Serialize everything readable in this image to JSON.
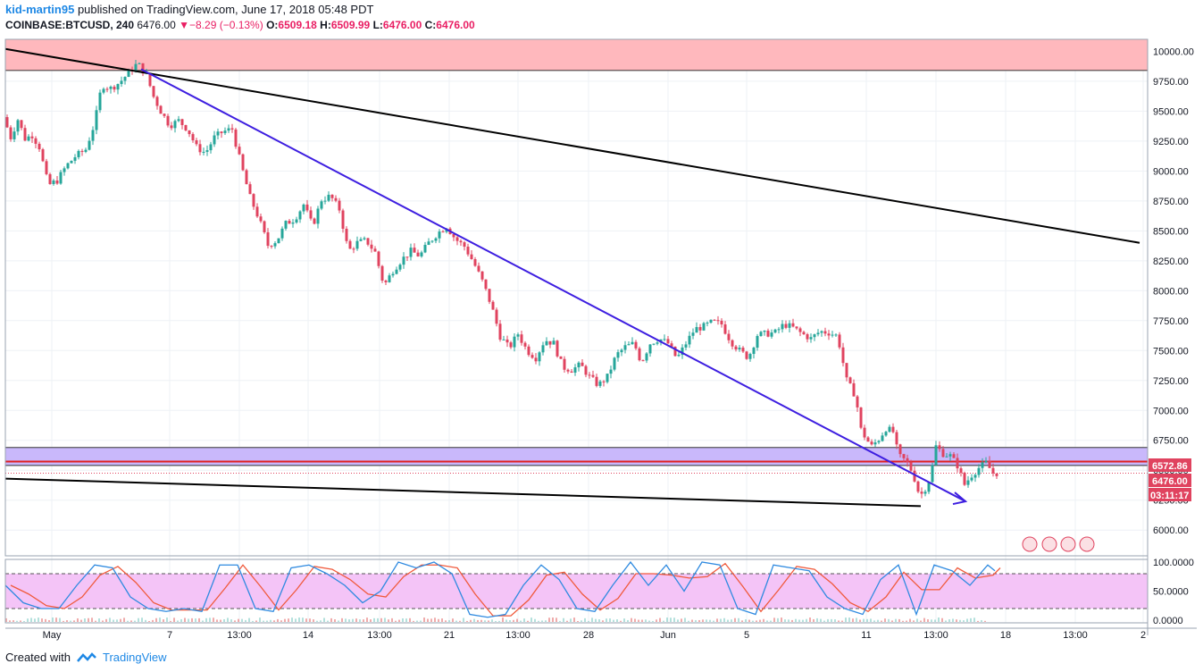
{
  "header": {
    "author": "kid-martin95",
    "published_text": "published on TradingView.com, June 17, 2018 05:48 PDT",
    "symbol": "COINBASE:BTCUSD, 240",
    "last": "6476.00",
    "change": "−8.29 (−0.13%)",
    "open_label": "O:",
    "open": "6509.18",
    "high_label": "H:",
    "high": "6509.99",
    "low_label": "L:",
    "low": "6476.00",
    "close_label": "C:",
    "close": "6476.00"
  },
  "footer": {
    "created_with": "Created with",
    "brand": "TradingView"
  },
  "price_tags": {
    "level": "6572.86",
    "last": "6476.00",
    "countdown": "03:11:17"
  },
  "colors": {
    "up": "#26a69a",
    "down": "#e0435f",
    "bg_grid": "#eef1f5",
    "resistance_zone": "#ffb8bd",
    "support_zone": "#c9b8fb",
    "trend_blue": "#3d1ee0",
    "trend_black": "#000000",
    "stoch_k": "#2f8ae0",
    "stoch_d": "#f05a3c",
    "stoch_band": "#f4c4f7"
  },
  "stoch_ticks": [
    "100.0000",
    "50.0000",
    "0.0000"
  ],
  "chart_data": {
    "type": "candlestick",
    "price_axis": {
      "ticks": [
        6000,
        6250,
        6500,
        6750,
        7000,
        7250,
        7500,
        7750,
        8000,
        8250,
        8500,
        8750,
        9000,
        9250,
        9500,
        9750,
        10000
      ],
      "range": [
        5800,
        10100
      ]
    },
    "time_axis_labels": [
      "May",
      "7",
      "13:00",
      "14",
      "13:00",
      "21",
      "13:00",
      "28",
      "Jun",
      "5",
      "11",
      "13:00",
      "18",
      "13:00",
      "2"
    ],
    "zones": [
      {
        "name": "resistance",
        "from": 9840,
        "to": 10100
      },
      {
        "name": "support",
        "from": 6540,
        "to": 6690
      }
    ],
    "horizontal_line": 6572.86,
    "path": [
      [
        0,
        9450
      ],
      [
        8,
        9280
      ],
      [
        16,
        9430
      ],
      [
        24,
        9270
      ],
      [
        32,
        9300
      ],
      [
        40,
        9200
      ],
      [
        50,
        8880
      ],
      [
        60,
        8920
      ],
      [
        70,
        9040
      ],
      [
        80,
        9120
      ],
      [
        92,
        9180
      ],
      [
        102,
        9400
      ],
      [
        110,
        9720
      ],
      [
        120,
        9690
      ],
      [
        130,
        9740
      ],
      [
        140,
        9820
      ],
      [
        150,
        9900
      ],
      [
        160,
        9800
      ],
      [
        168,
        9620
      ],
      [
        176,
        9500
      ],
      [
        186,
        9380
      ],
      [
        196,
        9420
      ],
      [
        206,
        9350
      ],
      [
        216,
        9200
      ],
      [
        226,
        9150
      ],
      [
        236,
        9280
      ],
      [
        246,
        9330
      ],
      [
        256,
        9350
      ],
      [
        266,
        9050
      ],
      [
        276,
        8780
      ],
      [
        286,
        8600
      ],
      [
        296,
        8380
      ],
      [
        306,
        8420
      ],
      [
        316,
        8560
      ],
      [
        326,
        8600
      ],
      [
        336,
        8720
      ],
      [
        346,
        8540
      ],
      [
        356,
        8760
      ],
      [
        366,
        8790
      ],
      [
        376,
        8680
      ],
      [
        386,
        8330
      ],
      [
        396,
        8400
      ],
      [
        406,
        8420
      ],
      [
        416,
        8320
      ],
      [
        426,
        8040
      ],
      [
        436,
        8170
      ],
      [
        446,
        8260
      ],
      [
        456,
        8330
      ],
      [
        466,
        8290
      ],
      [
        476,
        8400
      ],
      [
        486,
        8480
      ],
      [
        496,
        8540
      ],
      [
        506,
        8430
      ],
      [
        516,
        8370
      ],
      [
        526,
        8240
      ],
      [
        536,
        8080
      ],
      [
        546,
        7880
      ],
      [
        556,
        7620
      ],
      [
        566,
        7520
      ],
      [
        576,
        7640
      ],
      [
        586,
        7500
      ],
      [
        596,
        7440
      ],
      [
        606,
        7590
      ],
      [
        616,
        7560
      ],
      [
        626,
        7360
      ],
      [
        636,
        7340
      ],
      [
        646,
        7380
      ],
      [
        656,
        7280
      ],
      [
        666,
        7210
      ],
      [
        676,
        7280
      ],
      [
        686,
        7460
      ],
      [
        696,
        7530
      ],
      [
        706,
        7560
      ],
      [
        714,
        7400
      ],
      [
        724,
        7560
      ],
      [
        734,
        7600
      ],
      [
        744,
        7560
      ],
      [
        754,
        7430
      ],
      [
        764,
        7560
      ],
      [
        774,
        7680
      ],
      [
        784,
        7700
      ],
      [
        794,
        7740
      ],
      [
        804,
        7720
      ],
      [
        814,
        7580
      ],
      [
        824,
        7500
      ],
      [
        834,
        7440
      ],
      [
        844,
        7630
      ],
      [
        854,
        7640
      ],
      [
        864,
        7650
      ],
      [
        874,
        7720
      ],
      [
        884,
        7690
      ],
      [
        894,
        7640
      ],
      [
        904,
        7600
      ],
      [
        914,
        7660
      ],
      [
        924,
        7650
      ],
      [
        934,
        7620
      ],
      [
        944,
        7250
      ],
      [
        954,
        7120
      ],
      [
        960,
        6840
      ],
      [
        966,
        6760
      ],
      [
        972,
        6700
      ],
      [
        980,
        6760
      ],
      [
        988,
        6850
      ],
      [
        996,
        6820
      ],
      [
        1002,
        6620
      ],
      [
        1010,
        6580
      ],
      [
        1018,
        6480
      ],
      [
        1026,
        6280
      ],
      [
        1032,
        6350
      ],
      [
        1038,
        6450
      ],
      [
        1044,
        6700
      ],
      [
        1052,
        6640
      ],
      [
        1060,
        6620
      ],
      [
        1068,
        6540
      ],
      [
        1076,
        6380
      ],
      [
        1084,
        6460
      ],
      [
        1092,
        6520
      ],
      [
        1100,
        6560
      ],
      [
        1108,
        6476
      ]
    ],
    "trendlines": [
      {
        "name": "upper-descending",
        "from": [
          0,
          10020
        ],
        "to": [
          1270,
          8400
        ]
      },
      {
        "name": "blue-descending",
        "from": [
          152,
          9850
        ],
        "to": [
          1075,
          6240
        ],
        "arrow": true
      },
      {
        "name": "lower-descending",
        "from": [
          0,
          6430
        ],
        "to": [
          1025,
          6200
        ]
      }
    ],
    "stochastic": {
      "range": [
        0,
        100
      ],
      "upper": 80,
      "lower": 20,
      "k": [
        [
          0,
          60
        ],
        [
          20,
          30
        ],
        [
          40,
          20
        ],
        [
          60,
          20
        ],
        [
          80,
          60
        ],
        [
          100,
          95
        ],
        [
          120,
          90
        ],
        [
          140,
          40
        ],
        [
          160,
          20
        ],
        [
          180,
          15
        ],
        [
          200,
          20
        ],
        [
          220,
          15
        ],
        [
          240,
          95
        ],
        [
          260,
          95
        ],
        [
          280,
          20
        ],
        [
          300,
          15
        ],
        [
          320,
          90
        ],
        [
          340,
          95
        ],
        [
          360,
          80
        ],
        [
          380,
          60
        ],
        [
          400,
          30
        ],
        [
          420,
          50
        ],
        [
          440,
          100
        ],
        [
          460,
          90
        ],
        [
          480,
          100
        ],
        [
          500,
          80
        ],
        [
          520,
          10
        ],
        [
          540,
          5
        ],
        [
          560,
          10
        ],
        [
          580,
          60
        ],
        [
          600,
          95
        ],
        [
          620,
          70
        ],
        [
          640,
          20
        ],
        [
          660,
          15
        ],
        [
          680,
          60
        ],
        [
          700,
          100
        ],
        [
          720,
          60
        ],
        [
          740,
          95
        ],
        [
          760,
          50
        ],
        [
          780,
          100
        ],
        [
          800,
          95
        ],
        [
          820,
          20
        ],
        [
          840,
          10
        ],
        [
          860,
          95
        ],
        [
          880,
          90
        ],
        [
          900,
          85
        ],
        [
          920,
          40
        ],
        [
          940,
          20
        ],
        [
          960,
          10
        ],
        [
          980,
          70
        ],
        [
          1000,
          95
        ],
        [
          1020,
          10
        ],
        [
          1040,
          95
        ],
        [
          1060,
          85
        ],
        [
          1080,
          60
        ],
        [
          1100,
          95
        ],
        [
          1108,
          85
        ]
      ]
    }
  }
}
